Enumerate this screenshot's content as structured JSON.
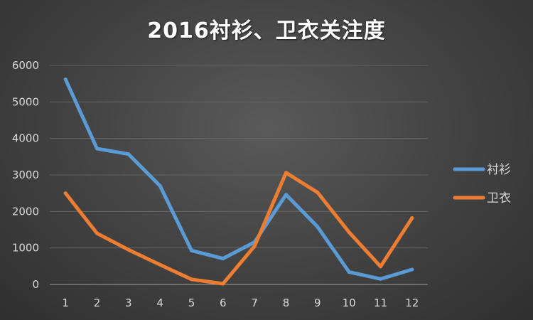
{
  "chart_data": {
    "type": "line",
    "title": "2016衬衫、卫衣关注度",
    "xlabel": "",
    "ylabel": "",
    "categories": [
      "1",
      "2",
      "3",
      "4",
      "5",
      "6",
      "7",
      "8",
      "9",
      "10",
      "11",
      "12"
    ],
    "ylim": [
      0,
      6000
    ],
    "yticks": [
      0,
      1000,
      2000,
      3000,
      4000,
      5000,
      6000
    ],
    "grid": true,
    "legend_position": "right",
    "series": [
      {
        "name": "衬衫",
        "color": "#5b9bd5",
        "values": [
          5620,
          3720,
          3570,
          2700,
          930,
          710,
          1160,
          2460,
          1580,
          340,
          150,
          410
        ]
      },
      {
        "name": "卫衣",
        "color": "#ed7d31",
        "values": [
          2500,
          1400,
          950,
          540,
          140,
          20,
          1050,
          3060,
          2520,
          1430,
          490,
          1820
        ]
      }
    ]
  }
}
